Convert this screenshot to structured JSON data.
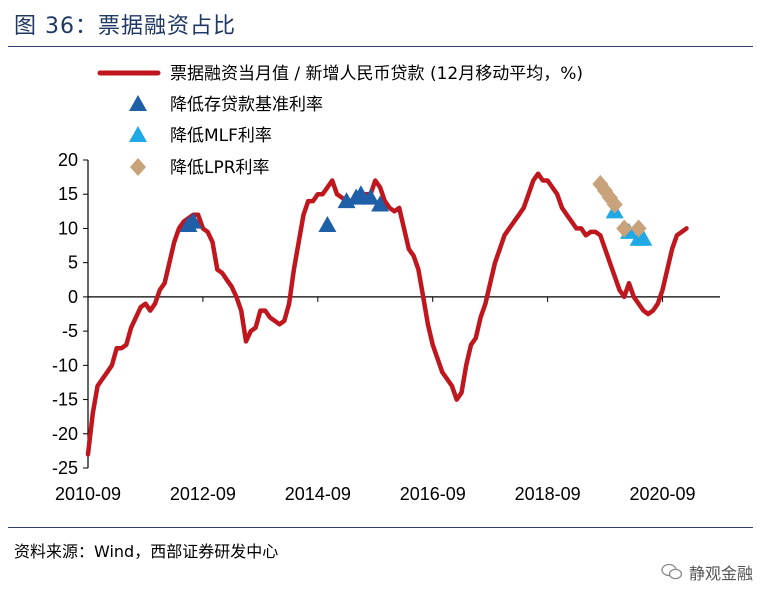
{
  "header": {
    "title": "图 36：票据融资占比"
  },
  "footer": {
    "source": "资料来源：Wind，西部证券研发中心"
  },
  "watermark": {
    "text": "静观金融"
  },
  "colors": {
    "line": "#c0161d",
    "rrr": "#1f5fa8",
    "mlf": "#21a9e6",
    "lpr": "#c8a27a",
    "title": "#1f3864"
  },
  "chart_data": {
    "type": "line",
    "title": "",
    "xlabel": "",
    "ylabel": "",
    "ylim": [
      -25,
      20
    ],
    "yticks": [
      20,
      15,
      10,
      5,
      0,
      -5,
      -10,
      -15,
      -20,
      -25
    ],
    "xticks": [
      "2010-09",
      "2012-09",
      "2014-09",
      "2016-09",
      "2018-09",
      "2020-09"
    ],
    "x_start": "2010-09",
    "x_end": "2021-09",
    "grid": false,
    "legend": "top",
    "series": [
      {
        "name": "票据融资当月值 / 新增人民币贷款 (12月移动平均，%)",
        "kind": "line",
        "color": "#c0161d",
        "points": [
          [
            "2010-09",
            -23
          ],
          [
            "2010-10",
            -17
          ],
          [
            "2010-11",
            -13
          ],
          [
            "2010-12",
            -12
          ],
          [
            "2011-01",
            -11
          ],
          [
            "2011-02",
            -10
          ],
          [
            "2011-03",
            -7.5
          ],
          [
            "2011-04",
            -7.5
          ],
          [
            "2011-05",
            -7
          ],
          [
            "2011-06",
            -4.5
          ],
          [
            "2011-07",
            -3
          ],
          [
            "2011-08",
            -1.5
          ],
          [
            "2011-09",
            -1
          ],
          [
            "2011-10",
            -2
          ],
          [
            "2011-11",
            -1
          ],
          [
            "2011-12",
            1
          ],
          [
            "2012-01",
            2
          ],
          [
            "2012-02",
            5
          ],
          [
            "2012-03",
            8
          ],
          [
            "2012-04",
            10
          ],
          [
            "2012-05",
            11
          ],
          [
            "2012-06",
            11.5
          ],
          [
            "2012-07",
            12
          ],
          [
            "2012-08",
            12
          ],
          [
            "2012-09",
            10
          ],
          [
            "2012-10",
            9.5
          ],
          [
            "2012-11",
            8
          ],
          [
            "2012-12",
            4
          ],
          [
            "2013-01",
            3.5
          ],
          [
            "2013-02",
            2.5
          ],
          [
            "2013-03",
            1.5
          ],
          [
            "2013-04",
            0
          ],
          [
            "2013-05",
            -2
          ],
          [
            "2013-06",
            -6.5
          ],
          [
            "2013-07",
            -5
          ],
          [
            "2013-08",
            -4.5
          ],
          [
            "2013-09",
            -2
          ],
          [
            "2013-10",
            -2
          ],
          [
            "2013-11",
            -3
          ],
          [
            "2013-12",
            -3.5
          ],
          [
            "2014-01",
            -4
          ],
          [
            "2014-02",
            -3.5
          ],
          [
            "2014-03",
            -1
          ],
          [
            "2014-04",
            4
          ],
          [
            "2014-05",
            8
          ],
          [
            "2014-06",
            12
          ],
          [
            "2014-07",
            14
          ],
          [
            "2014-08",
            14
          ],
          [
            "2014-09",
            15
          ],
          [
            "2014-10",
            15
          ],
          [
            "2014-11",
            16
          ],
          [
            "2014-12",
            17
          ],
          [
            "2015-01",
            15
          ],
          [
            "2015-02",
            14.5
          ],
          [
            "2015-03",
            14
          ],
          [
            "2015-04",
            14
          ],
          [
            "2015-05",
            14
          ],
          [
            "2015-06",
            15
          ],
          [
            "2015-07",
            15
          ],
          [
            "2015-08",
            15
          ],
          [
            "2015-09",
            17
          ],
          [
            "2015-10",
            16
          ],
          [
            "2015-11",
            14
          ],
          [
            "2015-12",
            13
          ],
          [
            "2016-01",
            12.5
          ],
          [
            "2016-02",
            13
          ],
          [
            "2016-03",
            10
          ],
          [
            "2016-04",
            7
          ],
          [
            "2016-05",
            6
          ],
          [
            "2016-06",
            4
          ],
          [
            "2016-07",
            0
          ],
          [
            "2016-08",
            -4
          ],
          [
            "2016-09",
            -7
          ],
          [
            "2016-10",
            -9
          ],
          [
            "2016-11",
            -11
          ],
          [
            "2016-12",
            -12
          ],
          [
            "2017-01",
            -13
          ],
          [
            "2017-02",
            -15
          ],
          [
            "2017-03",
            -14
          ],
          [
            "2017-04",
            -10
          ],
          [
            "2017-05",
            -7
          ],
          [
            "2017-06",
            -6
          ],
          [
            "2017-07",
            -3
          ],
          [
            "2017-08",
            -1
          ],
          [
            "2017-09",
            2
          ],
          [
            "2017-10",
            5
          ],
          [
            "2017-11",
            7
          ],
          [
            "2017-12",
            9
          ],
          [
            "2018-01",
            10
          ],
          [
            "2018-02",
            11
          ],
          [
            "2018-03",
            12
          ],
          [
            "2018-04",
            13
          ],
          [
            "2018-05",
            15
          ],
          [
            "2018-06",
            17
          ],
          [
            "2018-07",
            18
          ],
          [
            "2018-08",
            17
          ],
          [
            "2018-09",
            17
          ],
          [
            "2018-10",
            16
          ],
          [
            "2018-11",
            15
          ],
          [
            "2018-12",
            13
          ],
          [
            "2019-01",
            12
          ],
          [
            "2019-02",
            11
          ],
          [
            "2019-03",
            10
          ],
          [
            "2019-04",
            10
          ],
          [
            "2019-05",
            9
          ],
          [
            "2019-06",
            9.5
          ],
          [
            "2019-07",
            9.5
          ],
          [
            "2019-08",
            9
          ],
          [
            "2019-09",
            7
          ],
          [
            "2019-10",
            5
          ],
          [
            "2019-11",
            3
          ],
          [
            "2019-12",
            1
          ],
          [
            "2020-01",
            0
          ],
          [
            "2020-02",
            2
          ],
          [
            "2020-03",
            0
          ],
          [
            "2020-04",
            -1
          ],
          [
            "2020-05",
            -2
          ],
          [
            "2020-06",
            -2.5
          ],
          [
            "2020-07",
            -2
          ],
          [
            "2020-08",
            -1
          ],
          [
            "2020-09",
            1
          ],
          [
            "2020-10",
            4
          ],
          [
            "2020-11",
            7
          ],
          [
            "2020-12",
            9
          ],
          [
            "2021-01",
            9.5
          ],
          [
            "2021-02",
            10
          ]
        ]
      },
      {
        "name": "降低存贷款基准利率",
        "kind": "marker",
        "marker": "triangle",
        "color": "#1f5fa8",
        "points": [
          [
            "2012-06",
            10.5
          ],
          [
            "2012-07",
            11
          ],
          [
            "2014-11",
            10.5
          ],
          [
            "2015-03",
            14
          ],
          [
            "2015-05",
            14.5
          ],
          [
            "2015-06",
            15
          ],
          [
            "2015-08",
            14.5
          ],
          [
            "2015-10",
            13.5
          ]
        ]
      },
      {
        "name": "降低MLF利率",
        "kind": "marker",
        "marker": "triangle",
        "color": "#21a9e6",
        "points": [
          [
            "2019-11",
            12.5
          ],
          [
            "2020-02",
            9.5
          ],
          [
            "2020-04",
            8.5
          ],
          [
            "2020-05",
            8.5
          ]
        ]
      },
      {
        "name": "降低LPR利率",
        "kind": "marker",
        "marker": "diamond",
        "color": "#c8a27a",
        "points": [
          [
            "2019-08",
            16.5
          ],
          [
            "2019-09",
            15.5
          ],
          [
            "2019-10",
            14.5
          ],
          [
            "2019-11",
            13.5
          ],
          [
            "2020-01",
            10
          ],
          [
            "2020-04",
            10
          ]
        ]
      }
    ]
  }
}
